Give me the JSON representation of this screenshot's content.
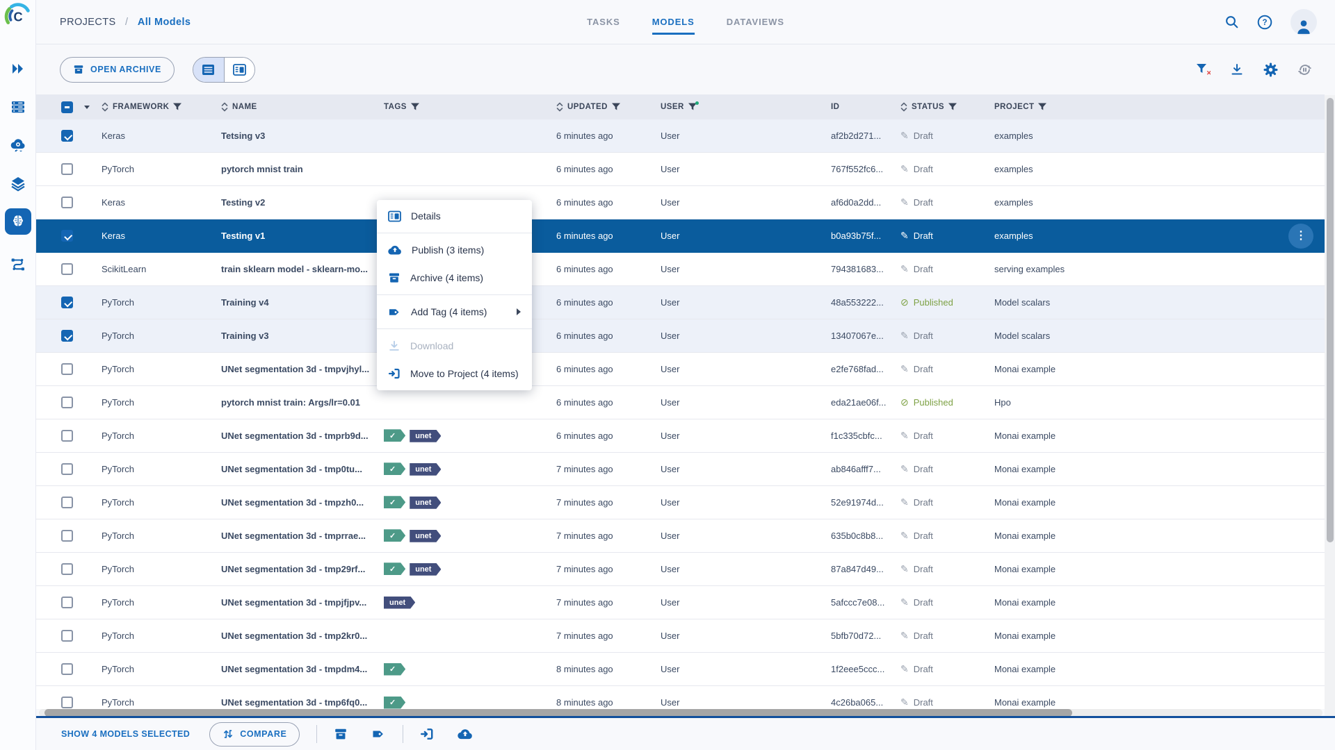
{
  "header": {
    "breadcrumb": {
      "root": "PROJECTS",
      "separator": "/",
      "current": "All Models"
    },
    "tabs": [
      {
        "label": "TASKS",
        "active": false
      },
      {
        "label": "MODELS",
        "active": true
      },
      {
        "label": "DATAVIEWS",
        "active": false
      }
    ],
    "right_icons": [
      "search-icon",
      "help-icon",
      "user-avatar"
    ]
  },
  "sidebar": {
    "items": [
      {
        "icon": "expand-double-chevron-icon",
        "active": false
      },
      {
        "icon": "workers-queues-icon",
        "active": false
      },
      {
        "icon": "cloud-services-icon",
        "active": false
      },
      {
        "icon": "datasets-layers-icon",
        "active": false
      },
      {
        "icon": "models-brain-icon",
        "active": true
      },
      {
        "icon": "pipelines-icon",
        "active": false
      }
    ]
  },
  "toolbar": {
    "open_archive_label": "OPEN ARCHIVE",
    "view_toggle": {
      "active": "table-view",
      "options": [
        "table-view-icon",
        "card-view-icon"
      ]
    },
    "right_icons": [
      "clear-filters-icon",
      "download-icon",
      "settings-gear-icon",
      "auto-refresh-icon"
    ]
  },
  "table": {
    "columns": [
      {
        "key": "select",
        "label": "",
        "sortable": false,
        "filterable": false,
        "filter_active": false
      },
      {
        "key": "framework",
        "label": "FRAMEWORK",
        "sortable": true,
        "filterable": true,
        "filter_active": false
      },
      {
        "key": "name",
        "label": "NAME",
        "sortable": true,
        "filterable": false,
        "filter_active": false
      },
      {
        "key": "tags",
        "label": "TAGS",
        "sortable": false,
        "filterable": true,
        "filter_active": false
      },
      {
        "key": "updated",
        "label": "UPDATED",
        "sortable": true,
        "filterable": true,
        "filter_active": false
      },
      {
        "key": "user",
        "label": "USER",
        "sortable": false,
        "filterable": true,
        "filter_active": true
      },
      {
        "key": "id",
        "label": "ID",
        "sortable": false,
        "filterable": false,
        "filter_active": false
      },
      {
        "key": "status",
        "label": "STATUS",
        "sortable": true,
        "filterable": true,
        "filter_active": false
      },
      {
        "key": "project",
        "label": "PROJECT",
        "sortable": false,
        "filterable": true,
        "filter_active": false
      }
    ],
    "tag_labels": {
      "check": "✓",
      "unet": "unet"
    },
    "status_icons": {
      "draft": "✎",
      "published": "⊘"
    },
    "kebab_glyph": "⋮",
    "rows": [
      {
        "framework": "Keras",
        "name": "Tetsing v3",
        "tags": [],
        "updated": "6 minutes ago",
        "user": "User",
        "id": "af2b2d271...",
        "status": "Draft",
        "published": false,
        "project": "examples",
        "checked": true,
        "active": false
      },
      {
        "framework": "PyTorch",
        "name": "pytorch mnist train",
        "tags": [],
        "updated": "6 minutes ago",
        "user": "User",
        "id": "767f552fc6...",
        "status": "Draft",
        "published": false,
        "project": "examples",
        "checked": false,
        "active": false
      },
      {
        "framework": "Keras",
        "name": "Testing v2",
        "tags": [],
        "updated": "6 minutes ago",
        "user": "User",
        "id": "af6d0a2dd...",
        "status": "Draft",
        "published": false,
        "project": "examples",
        "checked": false,
        "active": false
      },
      {
        "framework": "Keras",
        "name": "Testing v1",
        "tags": [],
        "updated": "6 minutes ago",
        "user": "User",
        "id": "b0a93b75f...",
        "status": "Draft",
        "published": false,
        "project": "examples",
        "checked": true,
        "active": true
      },
      {
        "framework": "ScikitLearn",
        "name": "train sklearn model - sklearn-mo...",
        "tags": [],
        "updated": "6 minutes ago",
        "user": "User",
        "id": "794381683...",
        "status": "Draft",
        "published": false,
        "project": "serving examples",
        "checked": false,
        "active": false
      },
      {
        "framework": "PyTorch",
        "name": "Training v4",
        "tags": [],
        "updated": "6 minutes ago",
        "user": "User",
        "id": "48a553222...",
        "status": "Published",
        "published": true,
        "project": "Model scalars",
        "checked": true,
        "active": false
      },
      {
        "framework": "PyTorch",
        "name": "Training v3",
        "tags": [],
        "updated": "6 minutes ago",
        "user": "User",
        "id": "13407067e...",
        "status": "Draft",
        "published": false,
        "project": "Model scalars",
        "checked": true,
        "active": false
      },
      {
        "framework": "PyTorch",
        "name": "UNet segmentation 3d - tmpvjhyl...",
        "tags": [],
        "updated": "6 minutes ago",
        "user": "User",
        "id": "e2fe768fad...",
        "status": "Draft",
        "published": false,
        "project": "Monai example",
        "checked": false,
        "active": false
      },
      {
        "framework": "PyTorch",
        "name": "pytorch mnist train: Args/lr=0.01",
        "tags": [],
        "updated": "6 minutes ago",
        "user": "User",
        "id": "eda21ae06f...",
        "status": "Published",
        "published": true,
        "project": "Hpo",
        "checked": false,
        "active": false
      },
      {
        "framework": "PyTorch",
        "name": "UNet segmentation 3d - tmprb9d...",
        "tags": [
          "check",
          "unet"
        ],
        "updated": "6 minutes ago",
        "user": "User",
        "id": "f1c335cbfc...",
        "status": "Draft",
        "published": false,
        "project": "Monai example",
        "checked": false,
        "active": false
      },
      {
        "framework": "PyTorch",
        "name": "UNet segmentation 3d - tmp0tu...",
        "tags": [
          "check",
          "unet"
        ],
        "updated": "7 minutes ago",
        "user": "User",
        "id": "ab846afff7...",
        "status": "Draft",
        "published": false,
        "project": "Monai example",
        "checked": false,
        "active": false
      },
      {
        "framework": "PyTorch",
        "name": "UNet segmentation 3d - tmpzh0...",
        "tags": [
          "check",
          "unet"
        ],
        "updated": "7 minutes ago",
        "user": "User",
        "id": "52e91974d...",
        "status": "Draft",
        "published": false,
        "project": "Monai example",
        "checked": false,
        "active": false
      },
      {
        "framework": "PyTorch",
        "name": "UNet segmentation 3d - tmprrae...",
        "tags": [
          "check",
          "unet"
        ],
        "updated": "7 minutes ago",
        "user": "User",
        "id": "635b0c8b8...",
        "status": "Draft",
        "published": false,
        "project": "Monai example",
        "checked": false,
        "active": false
      },
      {
        "framework": "PyTorch",
        "name": "UNet segmentation 3d - tmp29rf...",
        "tags": [
          "check",
          "unet"
        ],
        "updated": "7 minutes ago",
        "user": "User",
        "id": "87a847d49...",
        "status": "Draft",
        "published": false,
        "project": "Monai example",
        "checked": false,
        "active": false
      },
      {
        "framework": "PyTorch",
        "name": "UNet segmentation 3d - tmpjfjpv...",
        "tags": [
          "unet"
        ],
        "updated": "7 minutes ago",
        "user": "User",
        "id": "5afccc7e08...",
        "status": "Draft",
        "published": false,
        "project": "Monai example",
        "checked": false,
        "active": false
      },
      {
        "framework": "PyTorch",
        "name": "UNet segmentation 3d - tmp2kr0...",
        "tags": [],
        "updated": "7 minutes ago",
        "user": "User",
        "id": "5bfb70d72...",
        "status": "Draft",
        "published": false,
        "project": "Monai example",
        "checked": false,
        "active": false
      },
      {
        "framework": "PyTorch",
        "name": "UNet segmentation 3d - tmpdm4...",
        "tags": [
          "check"
        ],
        "updated": "8 minutes ago",
        "user": "User",
        "id": "1f2eee5ccc...",
        "status": "Draft",
        "published": false,
        "project": "Monai example",
        "checked": false,
        "active": false
      },
      {
        "framework": "PyTorch",
        "name": "UNet segmentation 3d - tmp6fq0...",
        "tags": [
          "check"
        ],
        "updated": "8 minutes ago",
        "user": "User",
        "id": "4c26ba065...",
        "status": "Draft",
        "published": false,
        "project": "Monai example",
        "checked": false,
        "active": false
      }
    ]
  },
  "context_menu": {
    "items": [
      {
        "label": "Details",
        "icon": "details-icon",
        "divider_before": false,
        "disabled": false,
        "submenu": false
      },
      {
        "label": "Publish (3 items)",
        "icon": "publish-cloud-icon",
        "divider_before": true,
        "disabled": false,
        "submenu": false
      },
      {
        "label": "Archive (4 items)",
        "icon": "archive-icon",
        "divider_before": false,
        "disabled": false,
        "submenu": false
      },
      {
        "label": "Add Tag (4 items)",
        "icon": "tag-icon",
        "divider_before": true,
        "disabled": false,
        "submenu": true
      },
      {
        "label": "Download",
        "icon": "download-icon",
        "divider_before": true,
        "disabled": true,
        "submenu": false
      },
      {
        "label": "Move to Project (4 items)",
        "icon": "move-to-project-icon",
        "divider_before": false,
        "disabled": false,
        "submenu": false
      }
    ]
  },
  "footer": {
    "selection_label": "SHOW 4 MODELS SELECTED",
    "compare_label": "COMPARE",
    "action_icons": [
      "archive-icon",
      "tag-icon",
      "move-to-project-icon",
      "publish-cloud-icon"
    ]
  },
  "colors": {
    "primary_blue": "#1465b3",
    "link_blue": "#1a6fc0",
    "active_row_blue": "#0a5c9d",
    "checked_row_bg": "#edf1f9",
    "header_row_bg": "#e6e9f1",
    "published_green": "#7da144",
    "tag_check_teal": "#4d9a88",
    "tag_unet_navy": "#424e7c",
    "filter_active_green": "#1fa97a",
    "clear_filter_red": "#e0413e",
    "draft_gray": "#6e7787"
  }
}
